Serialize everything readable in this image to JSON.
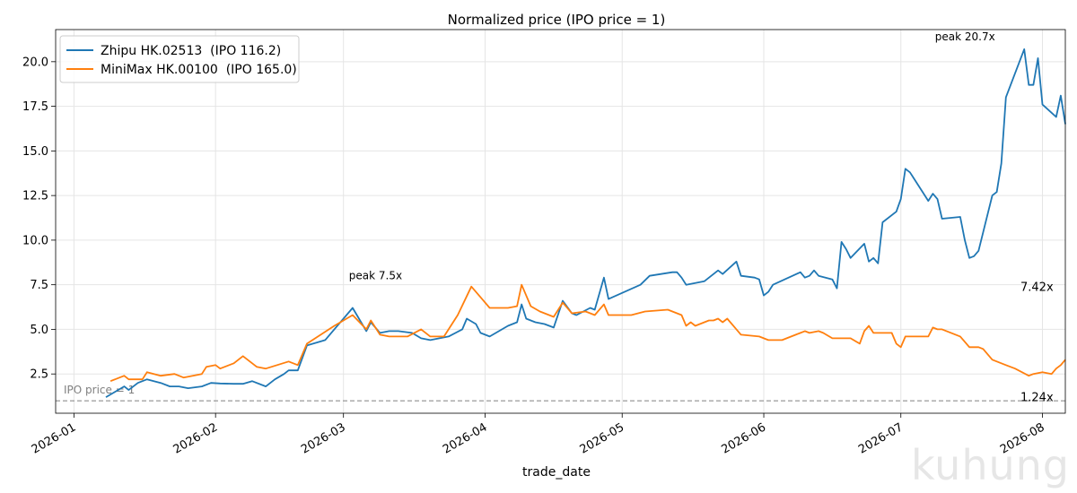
{
  "watermark": "kuhung",
  "chart_data": {
    "type": "line",
    "title": "Normalized price (IPO price = 1)",
    "xlabel": "trade_date",
    "ylabel": "",
    "xlim": [
      "2025-12-28",
      "2026-08-06"
    ],
    "ylim": [
      0.3,
      21.8
    ],
    "yticks": [
      2.5,
      5.0,
      7.5,
      10.0,
      12.5,
      15.0,
      17.5,
      20.0
    ],
    "ytick_labels": [
      "2.5",
      "5.0",
      "7.5",
      "10.0",
      "12.5",
      "15.0",
      "17.5",
      "20.0"
    ],
    "xticks": [
      "2026-01-01",
      "2026-02-01",
      "2026-03-01",
      "2026-04-01",
      "2026-05-01",
      "2026-06-01",
      "2026-07-01",
      "2026-08-01"
    ],
    "xtick_labels": [
      "2026-01",
      "2026-02",
      "2026-03",
      "2026-04",
      "2026-05",
      "2026-06",
      "2026-07",
      "2026-08"
    ],
    "grid": true,
    "legend_position": "top-left",
    "reference_line": {
      "y": 1.0,
      "label": "IPO price = 1",
      "color": "#808080"
    },
    "series": [
      {
        "name": "Zhipu HK.02513  (IPO 116.2)",
        "color": "#1f77b4",
        "points": [
          [
            "2026-01-08",
            1.2
          ],
          [
            "2026-01-10",
            1.5
          ],
          [
            "2026-01-12",
            1.8
          ],
          [
            "2026-01-13",
            1.6
          ],
          [
            "2026-01-15",
            2.0
          ],
          [
            "2026-01-17",
            2.2
          ],
          [
            "2026-01-20",
            2.0
          ],
          [
            "2026-01-22",
            1.8
          ],
          [
            "2026-01-24",
            1.8
          ],
          [
            "2026-01-26",
            1.7
          ],
          [
            "2026-01-29",
            1.8
          ],
          [
            "2026-01-31",
            2.0
          ],
          [
            "2026-02-02",
            1.97
          ],
          [
            "2026-02-05",
            1.95
          ],
          [
            "2026-02-07",
            1.95
          ],
          [
            "2026-02-09",
            2.1
          ],
          [
            "2026-02-12",
            1.8
          ],
          [
            "2026-02-14",
            2.2
          ],
          [
            "2026-02-16",
            2.5
          ],
          [
            "2026-02-17",
            2.7
          ],
          [
            "2026-02-19",
            2.7
          ],
          [
            "2026-02-21",
            4.1
          ],
          [
            "2026-02-25",
            4.4
          ],
          [
            "2026-03-03",
            6.2
          ],
          [
            "2026-03-06",
            4.9
          ],
          [
            "2026-03-07",
            5.4
          ],
          [
            "2026-03-09",
            4.8
          ],
          [
            "2026-03-11",
            4.9
          ],
          [
            "2026-03-13",
            4.9
          ],
          [
            "2026-03-16",
            4.8
          ],
          [
            "2026-03-18",
            4.5
          ],
          [
            "2026-03-20",
            4.4
          ],
          [
            "2026-03-24",
            4.6
          ],
          [
            "2026-03-27",
            5.0
          ],
          [
            "2026-03-28",
            5.6
          ],
          [
            "2026-03-30",
            5.3
          ],
          [
            "2026-03-31",
            4.8
          ],
          [
            "2026-04-02",
            4.6
          ],
          [
            "2026-04-06",
            5.2
          ],
          [
            "2026-04-08",
            5.4
          ],
          [
            "2026-04-09",
            6.4
          ],
          [
            "2026-04-10",
            5.6
          ],
          [
            "2026-04-12",
            5.4
          ],
          [
            "2026-04-14",
            5.3
          ],
          [
            "2026-04-16",
            5.1
          ],
          [
            "2026-04-18",
            6.6
          ],
          [
            "2026-04-20",
            5.9
          ],
          [
            "2026-04-21",
            5.8
          ],
          [
            "2026-04-24",
            6.2
          ],
          [
            "2026-04-25",
            6.1
          ],
          [
            "2026-04-27",
            7.9
          ],
          [
            "2026-04-28",
            6.7
          ],
          [
            "2026-05-05",
            7.5
          ],
          [
            "2026-05-07",
            8.0
          ],
          [
            "2026-05-12",
            8.2
          ],
          [
            "2026-05-13",
            8.2
          ],
          [
            "2026-05-14",
            7.9
          ],
          [
            "2026-05-15",
            7.5
          ],
          [
            "2026-05-17",
            7.6
          ],
          [
            "2026-05-19",
            7.7
          ],
          [
            "2026-05-22",
            8.3
          ],
          [
            "2026-05-23",
            8.1
          ],
          [
            "2026-05-26",
            8.8
          ],
          [
            "2026-05-27",
            8.0
          ],
          [
            "2026-05-30",
            7.9
          ],
          [
            "2026-05-31",
            7.8
          ],
          [
            "2026-06-01",
            6.9
          ],
          [
            "2026-06-02",
            7.1
          ],
          [
            "2026-06-03",
            7.5
          ],
          [
            "2026-06-09",
            8.2
          ],
          [
            "2026-06-10",
            7.9
          ],
          [
            "2026-06-11",
            8.0
          ],
          [
            "2026-06-12",
            8.3
          ],
          [
            "2026-06-13",
            8.0
          ],
          [
            "2026-06-16",
            7.8
          ],
          [
            "2026-06-17",
            7.3
          ],
          [
            "2026-06-18",
            9.9
          ],
          [
            "2026-06-19",
            9.5
          ],
          [
            "2026-06-20",
            9.0
          ],
          [
            "2026-06-23",
            9.8
          ],
          [
            "2026-06-24",
            8.8
          ],
          [
            "2026-06-25",
            9.0
          ],
          [
            "2026-06-26",
            8.7
          ],
          [
            "2026-06-27",
            11.0
          ],
          [
            "2026-06-30",
            11.6
          ],
          [
            "2026-07-01",
            12.3
          ],
          [
            "2026-07-02",
            14.0
          ],
          [
            "2026-07-03",
            13.8
          ],
          [
            "2026-07-06",
            12.6
          ],
          [
            "2026-07-07",
            12.2
          ],
          [
            "2026-07-08",
            12.6
          ],
          [
            "2026-07-09",
            12.3
          ],
          [
            "2026-07-10",
            11.2
          ],
          [
            "2026-07-14",
            11.3
          ],
          [
            "2026-07-15",
            10.0
          ],
          [
            "2026-07-16",
            9.0
          ],
          [
            "2026-07-17",
            9.1
          ],
          [
            "2026-07-18",
            9.4
          ],
          [
            "2026-07-21",
            12.5
          ],
          [
            "2026-07-22",
            12.7
          ],
          [
            "2026-07-23",
            14.3
          ],
          [
            "2026-07-24",
            18.0
          ],
          [
            "2026-07-28",
            20.7
          ],
          [
            "2026-07-29",
            18.7
          ],
          [
            "2026-07-30",
            18.7
          ],
          [
            "2026-07-31",
            20.2
          ],
          [
            "2026-08-01",
            17.6
          ],
          [
            "2026-08-04",
            16.9
          ],
          [
            "2026-08-05",
            18.1
          ],
          [
            "2026-08-06",
            16.5
          ]
        ]
      },
      {
        "name": "MiniMax HK.00100  (IPO 165.0)",
        "color": "#ff7f0e",
        "points": [
          [
            "2026-01-09",
            2.1
          ],
          [
            "2026-01-11",
            2.3
          ],
          [
            "2026-01-12",
            2.4
          ],
          [
            "2026-01-13",
            2.2
          ],
          [
            "2026-01-16",
            2.2
          ],
          [
            "2026-01-17",
            2.6
          ],
          [
            "2026-01-20",
            2.4
          ],
          [
            "2026-01-23",
            2.5
          ],
          [
            "2026-01-25",
            2.3
          ],
          [
            "2026-01-27",
            2.4
          ],
          [
            "2026-01-29",
            2.5
          ],
          [
            "2026-01-30",
            2.9
          ],
          [
            "2026-02-01",
            3.0
          ],
          [
            "2026-02-02",
            2.8
          ],
          [
            "2026-02-05",
            3.1
          ],
          [
            "2026-02-07",
            3.5
          ],
          [
            "2026-02-10",
            2.9
          ],
          [
            "2026-02-12",
            2.8
          ],
          [
            "2026-02-17",
            3.2
          ],
          [
            "2026-02-19",
            3.0
          ],
          [
            "2026-02-21",
            4.2
          ],
          [
            "2026-02-27",
            5.2
          ],
          [
            "2026-03-03",
            5.8
          ],
          [
            "2026-03-06",
            5.0
          ],
          [
            "2026-03-07",
            5.5
          ],
          [
            "2026-03-09",
            4.7
          ],
          [
            "2026-03-11",
            4.6
          ],
          [
            "2026-03-15",
            4.6
          ],
          [
            "2026-03-18",
            5.0
          ],
          [
            "2026-03-20",
            4.6
          ],
          [
            "2026-03-23",
            4.6
          ],
          [
            "2026-03-26",
            5.8
          ],
          [
            "2026-03-29",
            7.4
          ],
          [
            "2026-03-31",
            6.8
          ],
          [
            "2026-04-02",
            6.2
          ],
          [
            "2026-04-06",
            6.2
          ],
          [
            "2026-04-08",
            6.3
          ],
          [
            "2026-04-09",
            7.5
          ],
          [
            "2026-04-11",
            6.3
          ],
          [
            "2026-04-13",
            6.0
          ],
          [
            "2026-04-16",
            5.7
          ],
          [
            "2026-04-18",
            6.5
          ],
          [
            "2026-04-20",
            5.9
          ],
          [
            "2026-04-23",
            6.0
          ],
          [
            "2026-04-25",
            5.8
          ],
          [
            "2026-04-27",
            6.4
          ],
          [
            "2026-04-28",
            5.8
          ],
          [
            "2026-05-03",
            5.8
          ],
          [
            "2026-05-06",
            6.0
          ],
          [
            "2026-05-11",
            6.1
          ],
          [
            "2026-05-14",
            5.8
          ],
          [
            "2026-05-15",
            5.2
          ],
          [
            "2026-05-16",
            5.4
          ],
          [
            "2026-05-17",
            5.2
          ],
          [
            "2026-05-20",
            5.5
          ],
          [
            "2026-05-21",
            5.5
          ],
          [
            "2026-05-22",
            5.6
          ],
          [
            "2026-05-23",
            5.4
          ],
          [
            "2026-05-24",
            5.6
          ],
          [
            "2026-05-26",
            5.0
          ],
          [
            "2026-05-27",
            4.7
          ],
          [
            "2026-05-31",
            4.6
          ],
          [
            "2026-06-02",
            4.4
          ],
          [
            "2026-06-05",
            4.4
          ],
          [
            "2026-06-08",
            4.7
          ],
          [
            "2026-06-10",
            4.9
          ],
          [
            "2026-06-11",
            4.8
          ],
          [
            "2026-06-13",
            4.9
          ],
          [
            "2026-06-14",
            4.8
          ],
          [
            "2026-06-16",
            4.5
          ],
          [
            "2026-06-20",
            4.5
          ],
          [
            "2026-06-22",
            4.2
          ],
          [
            "2026-06-23",
            4.9
          ],
          [
            "2026-06-24",
            5.2
          ],
          [
            "2026-06-25",
            4.8
          ],
          [
            "2026-06-29",
            4.8
          ],
          [
            "2026-06-30",
            4.2
          ],
          [
            "2026-07-01",
            4.0
          ],
          [
            "2026-07-02",
            4.6
          ],
          [
            "2026-07-06",
            4.6
          ],
          [
            "2026-07-07",
            4.6
          ],
          [
            "2026-07-08",
            5.1
          ],
          [
            "2026-07-09",
            5.0
          ],
          [
            "2026-07-10",
            5.0
          ],
          [
            "2026-07-14",
            4.6
          ],
          [
            "2026-07-16",
            4.0
          ],
          [
            "2026-07-18",
            4.0
          ],
          [
            "2026-07-19",
            3.9
          ],
          [
            "2026-07-21",
            3.3
          ],
          [
            "2026-07-24",
            3.0
          ],
          [
            "2026-07-26",
            2.8
          ],
          [
            "2026-07-29",
            2.4
          ],
          [
            "2026-07-30",
            2.5
          ],
          [
            "2026-08-01",
            2.6
          ],
          [
            "2026-08-03",
            2.5
          ],
          [
            "2026-08-04",
            2.8
          ],
          [
            "2026-08-05",
            3.0
          ],
          [
            "2026-08-06",
            3.3
          ]
        ]
      }
    ],
    "annotations": [
      {
        "text": "peak 7.5x",
        "x": "2026-03-09",
        "y": 7.8
      },
      {
        "text": "peak 20.7x",
        "x": "2026-07-18",
        "y": 21.2
      },
      {
        "text": "7.42x",
        "x": "2026-08-05",
        "y": 7.42
      },
      {
        "text": "1.24x",
        "x": "2026-08-05",
        "y": 1.24
      }
    ]
  }
}
